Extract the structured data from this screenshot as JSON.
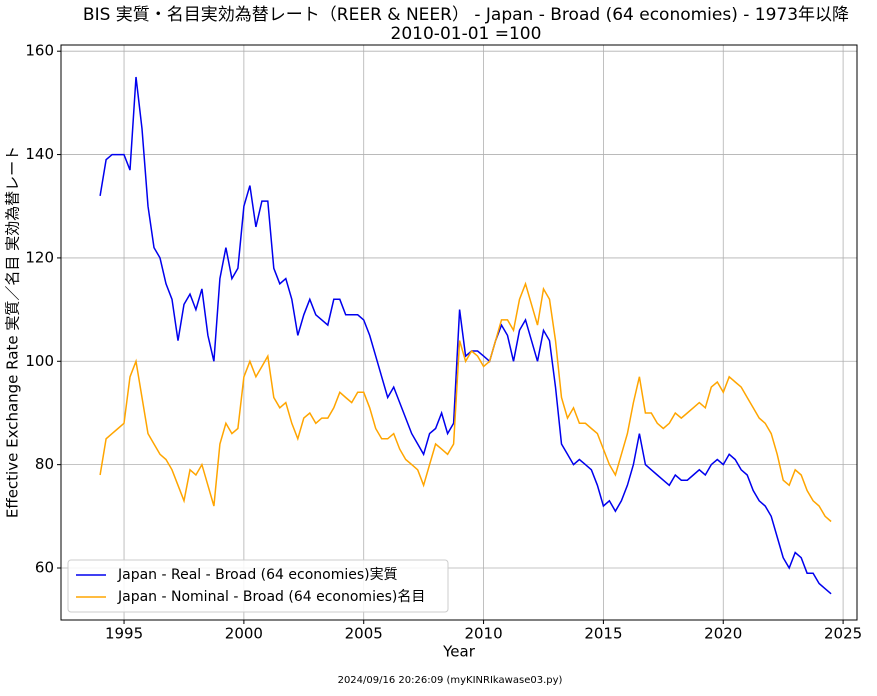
{
  "chart_data": {
    "type": "line",
    "title": "BIS 実質・名目実効為替レート（REER & NEER） - Japan - Broad (64 economies) - 1973年以降",
    "subtitle": "2010-01-01 =100",
    "x_label": "Year",
    "y_label": "Effective Exchange Rate 実質／名目 実効為替レート",
    "footer": "2024/09/16 20:26:09 (myKINRIkawase03.py)",
    "x": [
      1994.0,
      1994.25,
      1994.5,
      1994.75,
      1995.0,
      1995.25,
      1995.5,
      1995.75,
      1996.0,
      1996.25,
      1996.5,
      1996.75,
      1997.0,
      1997.25,
      1997.5,
      1997.75,
      1998.0,
      1998.25,
      1998.5,
      1998.75,
      1999.0,
      1999.25,
      1999.5,
      1999.75,
      2000.0,
      2000.25,
      2000.5,
      2000.75,
      2001.0,
      2001.25,
      2001.5,
      2001.75,
      2002.0,
      2002.25,
      2002.5,
      2002.75,
      2003.0,
      2003.25,
      2003.5,
      2003.75,
      2004.0,
      2004.25,
      2004.5,
      2004.75,
      2005.0,
      2005.25,
      2005.5,
      2005.75,
      2006.0,
      2006.25,
      2006.5,
      2006.75,
      2007.0,
      2007.25,
      2007.5,
      2007.75,
      2008.0,
      2008.25,
      2008.5,
      2008.75,
      2009.0,
      2009.25,
      2009.5,
      2009.75,
      2010.0,
      2010.25,
      2010.5,
      2010.75,
      2011.0,
      2011.25,
      2011.5,
      2011.75,
      2012.0,
      2012.25,
      2012.5,
      2012.75,
      2013.0,
      2013.25,
      2013.5,
      2013.75,
      2014.0,
      2014.25,
      2014.5,
      2014.75,
      2015.0,
      2015.25,
      2015.5,
      2015.75,
      2016.0,
      2016.25,
      2016.5,
      2016.75,
      2017.0,
      2017.25,
      2017.5,
      2017.75,
      2018.0,
      2018.25,
      2018.5,
      2018.75,
      2019.0,
      2019.25,
      2019.5,
      2019.75,
      2020.0,
      2020.25,
      2020.5,
      2020.75,
      2021.0,
      2021.25,
      2021.5,
      2021.75,
      2022.0,
      2022.25,
      2022.5,
      2022.75,
      2023.0,
      2023.25,
      2023.5,
      2023.75,
      2024.0,
      2024.25,
      2024.5
    ],
    "series": [
      {
        "name": "Japan - Real - Broad (64 economies)実質",
        "color": "#0000ee",
        "values": [
          132,
          139,
          140,
          140,
          140,
          137,
          155,
          145,
          130,
          122,
          120,
          115,
          112,
          104,
          111,
          113,
          110,
          114,
          105,
          100,
          116,
          122,
          116,
          118,
          130,
          134,
          126,
          131,
          131,
          118,
          115,
          116,
          112,
          105,
          109,
          112,
          109,
          108,
          107,
          112,
          112,
          109,
          109,
          109,
          108,
          105,
          101,
          97,
          93,
          95,
          92,
          89,
          86,
          84,
          82,
          86,
          87,
          90,
          86,
          88,
          110,
          101,
          102,
          102,
          101,
          100,
          104,
          107,
          105,
          100,
          106,
          108,
          104,
          100,
          106,
          104,
          95,
          84,
          82,
          80,
          81,
          80,
          79,
          76,
          72,
          73,
          71,
          73,
          76,
          80,
          86,
          80,
          79,
          78,
          77,
          76,
          78,
          77,
          77,
          78,
          79,
          78,
          80,
          81,
          80,
          82,
          81,
          79,
          78,
          75,
          73,
          72,
          70,
          66,
          62,
          60,
          63,
          62,
          59,
          59,
          57,
          56,
          55
        ]
      },
      {
        "name": "Japan - Nominal - Broad (64 economies)名目",
        "color": "#ffa500",
        "values": [
          78,
          85,
          86,
          87,
          88,
          97,
          100,
          93,
          86,
          84,
          82,
          81,
          79,
          76,
          73,
          79,
          78,
          80,
          76,
          72,
          84,
          88,
          86,
          87,
          97,
          100,
          97,
          99,
          101,
          93,
          91,
          92,
          88,
          85,
          89,
          90,
          88,
          89,
          89,
          91,
          94,
          93,
          92,
          94,
          94,
          91,
          87,
          85,
          85,
          86,
          83,
          81,
          80,
          79,
          76,
          80,
          84,
          83,
          82,
          84,
          104,
          100,
          102,
          101,
          99,
          100,
          104,
          108,
          108,
          106,
          112,
          115,
          111,
          107,
          114,
          112,
          104,
          93,
          89,
          91,
          88,
          88,
          87,
          86,
          83,
          80,
          78,
          82,
          86,
          92,
          97,
          90,
          90,
          88,
          87,
          88,
          90,
          89,
          90,
          91,
          92,
          91,
          95,
          96,
          94,
          97,
          96,
          95,
          93,
          91,
          89,
          88,
          86,
          82,
          77,
          76,
          79,
          78,
          75,
          73,
          72,
          70,
          69
        ]
      }
    ],
    "xlim": [
      1992.37,
      2025.58
    ],
    "xticks": [
      1995,
      2000,
      2005,
      2010,
      2015,
      2020,
      2025
    ],
    "ylim": [
      49.94,
      161.2
    ],
    "yticks": [
      60,
      80,
      100,
      120,
      140,
      160
    ],
    "grid": true,
    "legend": "lower left"
  }
}
